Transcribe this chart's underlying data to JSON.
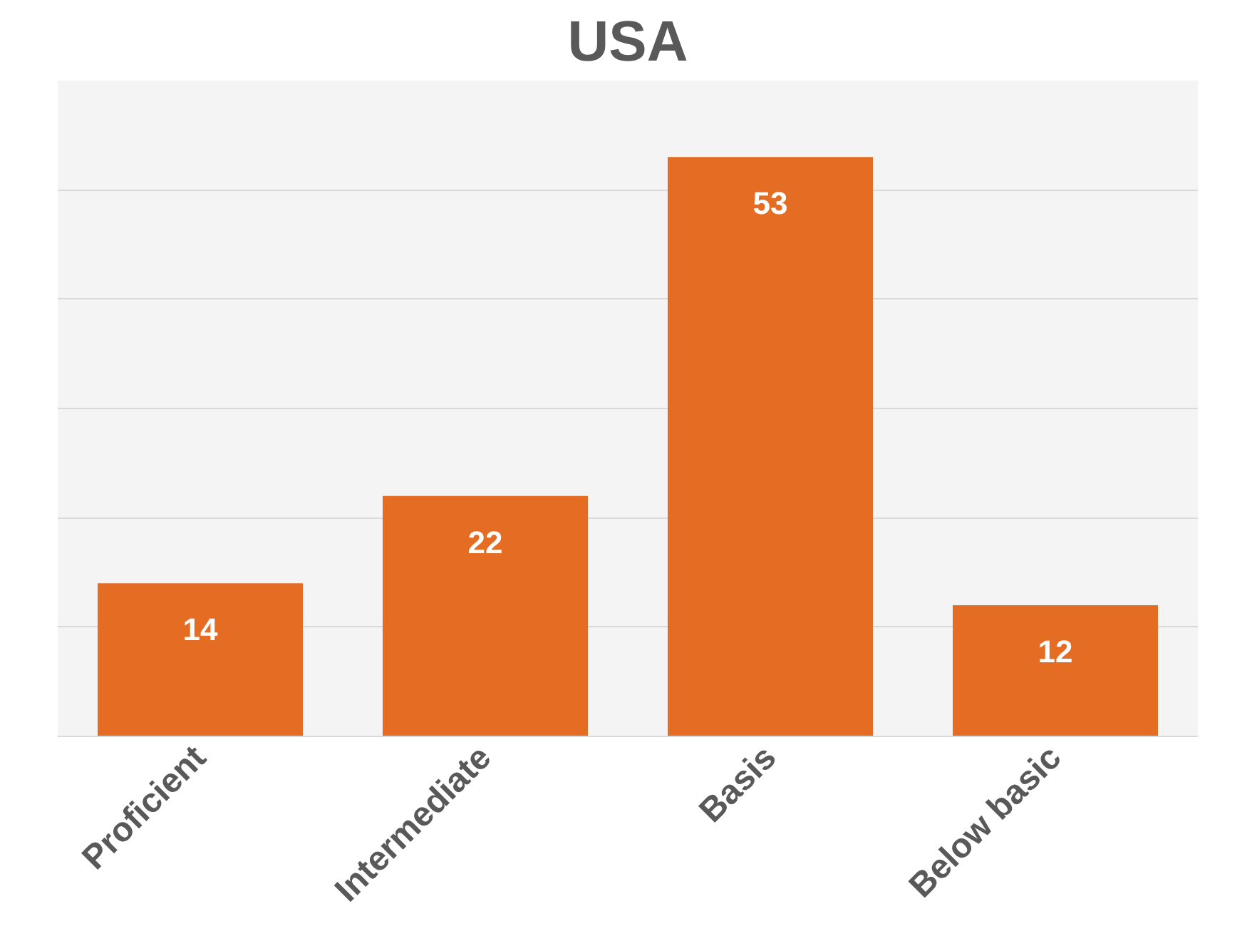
{
  "chart_data": {
    "type": "bar",
    "title": "USA",
    "categories": [
      "Proficient",
      "Intermediate",
      "Basis",
      "Below basic"
    ],
    "values": [
      14,
      22,
      53,
      12
    ],
    "color": "#e46c23",
    "ylim": [
      0,
      60
    ],
    "yticks": [
      {
        "value": 0,
        "label": null
      },
      {
        "value": 10,
        "label": null
      },
      {
        "value": 20,
        "label": null
      },
      {
        "value": 30,
        "label": null
      },
      {
        "value": 40,
        "label": null
      },
      {
        "value": 50,
        "label": null
      },
      {
        "value": 60,
        "label": null
      }
    ],
    "grid": "y",
    "data_labels": true,
    "tick_labels": "x"
  }
}
